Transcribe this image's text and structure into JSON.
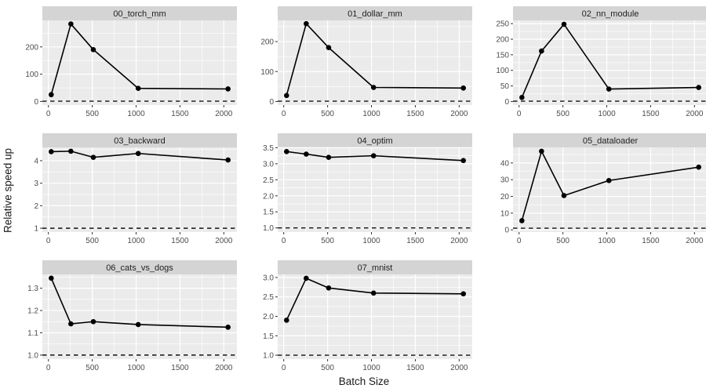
{
  "chart_data": {
    "type": "line",
    "style": "facet-grid-small-multiples",
    "x_label": "Batch Size",
    "y_label": "Relative speed up",
    "facet_layout": {
      "ncols": 3,
      "nrows": 3,
      "filled_cells": 8
    },
    "x": [
      32,
      256,
      512,
      1024,
      2048
    ],
    "xlim": [
      -69,
      2149
    ],
    "xtick_values": [
      0,
      500,
      1000,
      1500,
      2000
    ],
    "xtick_labels": [
      "0",
      "500",
      "1000",
      "1500",
      "2000"
    ],
    "xminor_values": [
      250,
      750,
      1250,
      1750
    ],
    "reference_line_y": 1,
    "grid": "major-and-minor-white-on-gray",
    "legend": "none",
    "colors": {
      "panel_bg": "#ebebeb",
      "strip_bg": "#d4d4d4",
      "grid_line": "#ffffff",
      "series_line": "#000000",
      "point": "#000000",
      "reference_line": "#111111",
      "tick_text": "#4d4d4d",
      "strip_text": "#1f1f1f",
      "tick_mark": "#333333"
    },
    "facets": [
      {
        "title": "00_torch_mm",
        "y": [
          25,
          284,
          190,
          48,
          46
        ],
        "ylim": [
          -13.1,
          297.1
        ],
        "ytick_values": [
          0,
          100,
          200
        ],
        "ytick_labels": [
          "0",
          "100",
          "200"
        ],
        "yminor_values": [
          50,
          150,
          250
        ]
      },
      {
        "title": "01_dollar_mm",
        "y": [
          20,
          260,
          180,
          47,
          45
        ],
        "ylim": [
          -11.9,
          270.9
        ],
        "ytick_values": [
          0,
          100,
          200
        ],
        "ytick_labels": [
          "0",
          "100",
          "200"
        ],
        "yminor_values": [
          50,
          150,
          250
        ]
      },
      {
        "title": "02_nn_module",
        "y": [
          13,
          162,
          248,
          40,
          45
        ],
        "ylim": [
          -11.4,
          260.4
        ],
        "ytick_values": [
          0,
          50,
          100,
          150,
          200,
          250
        ],
        "ytick_labels": [
          "0",
          "50",
          "100",
          "150",
          "200",
          "250"
        ],
        "yminor_values": [
          25,
          75,
          125,
          175,
          225
        ]
      },
      {
        "title": "03_backward",
        "y": [
          4.4,
          4.42,
          4.15,
          4.32,
          4.03
        ],
        "ylim": [
          0.83,
          4.59
        ],
        "ytick_values": [
          1,
          2,
          3,
          4
        ],
        "ytick_labels": [
          "1",
          "2",
          "3",
          "4"
        ],
        "yminor_values": [
          1.5,
          2.5,
          3.5,
          4.5
        ]
      },
      {
        "title": "04_optim",
        "y": [
          3.38,
          3.3,
          3.2,
          3.25,
          3.1
        ],
        "ylim": [
          0.87,
          3.51
        ],
        "ytick_values": [
          1.0,
          1.5,
          2.0,
          2.5,
          3.0,
          3.5
        ],
        "ytick_labels": [
          "1.0",
          "1.5",
          "2.0",
          "2.5",
          "3.0",
          "3.5"
        ],
        "yminor_values": [
          1.25,
          1.75,
          2.25,
          2.75,
          3.25
        ]
      },
      {
        "title": "05_dataloader",
        "y": [
          5.5,
          47,
          20.5,
          29.5,
          37.5
        ],
        "ylim": [
          -1.3,
          49.3
        ],
        "ytick_values": [
          0,
          10,
          20,
          30,
          40
        ],
        "ytick_labels": [
          "0",
          "10",
          "20",
          "30",
          "40"
        ],
        "yminor_values": [
          5,
          15,
          25,
          35,
          45
        ]
      },
      {
        "title": "06_cats_vs_dogs",
        "y": [
          1.345,
          1.14,
          1.15,
          1.137,
          1.125
        ],
        "ylim": [
          0.982,
          1.362
        ],
        "ytick_values": [
          1.0,
          1.1,
          1.2,
          1.3
        ],
        "ytick_labels": [
          "1.0",
          "1.1",
          "1.2",
          "1.3"
        ],
        "yminor_values": [
          1.05,
          1.15,
          1.25,
          1.35
        ]
      },
      {
        "title": "07_mnist",
        "y": [
          1.9,
          2.98,
          2.73,
          2.6,
          2.58
        ],
        "ylim": [
          0.9,
          3.08
        ],
        "ytick_values": [
          1.0,
          1.5,
          2.0,
          2.5,
          3.0
        ],
        "ytick_labels": [
          "1.0",
          "1.5",
          "2.0",
          "2.5",
          "3.0"
        ],
        "yminor_values": [
          1.25,
          1.75,
          2.25,
          2.75
        ]
      }
    ]
  }
}
